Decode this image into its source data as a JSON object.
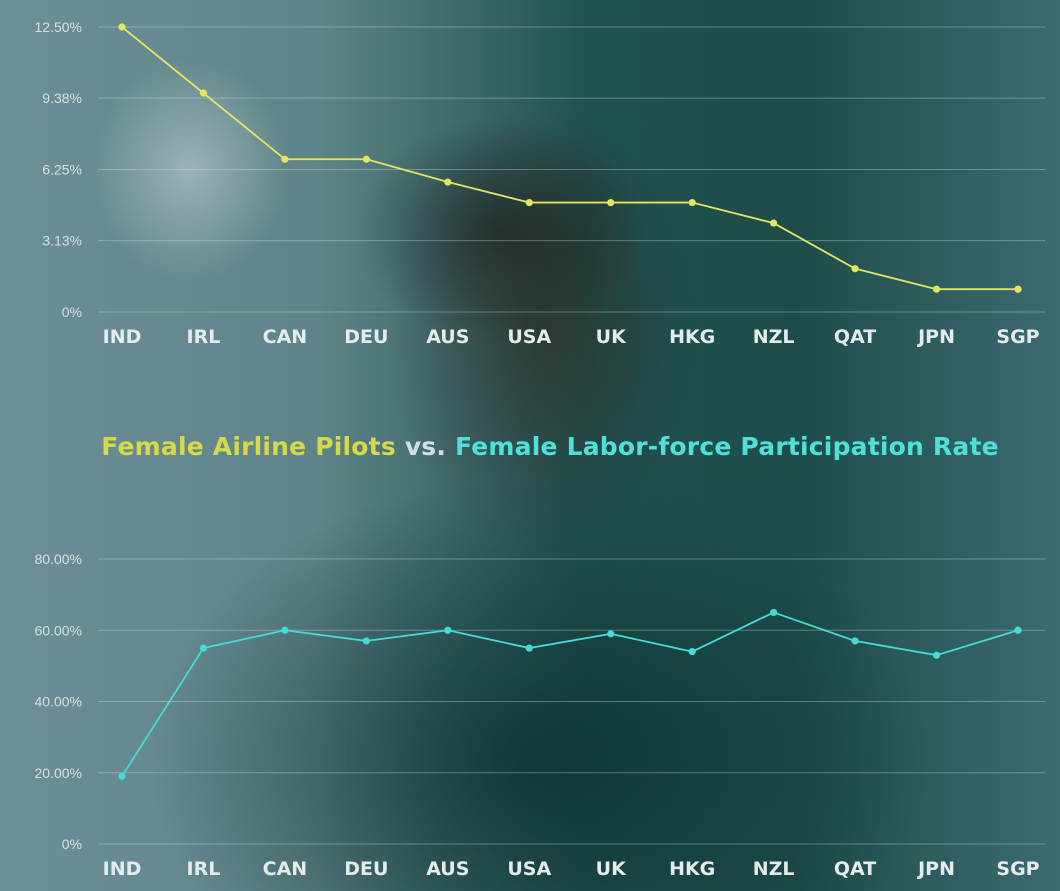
{
  "title": {
    "part1": "Female Airline Pilots",
    "part2": "vs.",
    "part3": "Female Labor-force Participation Rate"
  },
  "colors": {
    "pilots_line": "#e4e660",
    "labor_line": "#45dcd6",
    "title_pilots": "#d7d84a",
    "title_vs": "#cfe2e2",
    "title_labor": "#4fe0da"
  },
  "chart_data": [
    {
      "type": "line",
      "categories": [
        "IND",
        "IRL",
        "CAN",
        "DEU",
        "AUS",
        "USA",
        "UK",
        "HKG",
        "NZL",
        "QAT",
        "JPN",
        "SGP"
      ],
      "series": [
        {
          "values": [
            12.5,
            9.6,
            6.7,
            6.7,
            5.7,
            4.8,
            4.8,
            4.8,
            3.9,
            1.9,
            1.0,
            1.0
          ]
        }
      ],
      "yticks": [
        {
          "value": 0,
          "label": "0%"
        },
        {
          "value": 3.13,
          "label": "3.13%"
        },
        {
          "value": 6.25,
          "label": "6.25%"
        },
        {
          "value": 9.38,
          "label": "9.38%"
        },
        {
          "value": 12.5,
          "label": "12.50%"
        }
      ],
      "ylim": [
        0,
        12.5
      ],
      "grid": true
    },
    {
      "type": "line",
      "categories": [
        "IND",
        "IRL",
        "CAN",
        "DEU",
        "AUS",
        "USA",
        "UK",
        "HKG",
        "NZL",
        "QAT",
        "JPN",
        "SGP"
      ],
      "series": [
        {
          "values": [
            19,
            55,
            60,
            57,
            60,
            55,
            59,
            54,
            65,
            57,
            53,
            60
          ]
        }
      ],
      "yticks": [
        {
          "value": 0,
          "label": "0%"
        },
        {
          "value": 20,
          "label": "20.00%"
        },
        {
          "value": 40,
          "label": "40.00%"
        },
        {
          "value": 60,
          "label": "60.00%"
        },
        {
          "value": 80,
          "label": "80.00%"
        }
      ],
      "ylim": [
        0,
        80
      ],
      "grid": true
    }
  ]
}
